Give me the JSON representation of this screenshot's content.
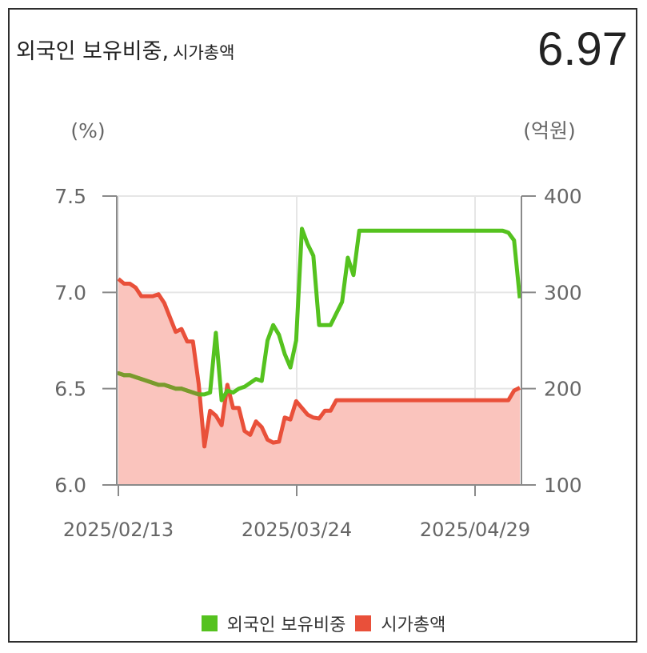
{
  "header": {
    "title_main": "외국인 보유비중,",
    "title_sub": "시가총액",
    "current_value": "6.97"
  },
  "colors": {
    "foreign_line": "#55c21f",
    "foreign_overlap": "#7a9a2c",
    "market_cap_line": "#e9503a",
    "market_cap_fill": "#fac4bd",
    "axis": "#8a8a8a",
    "grid": "#e6e6e6"
  },
  "legend": {
    "foreign_label": "외국인 보유비중",
    "market_cap_label": "시가총액"
  },
  "chart_data": {
    "type": "line",
    "title": "외국인 보유비중, 시가총액",
    "x_tick_labels": [
      "2025/02/13",
      "2025/03/24",
      "2025/04/29"
    ],
    "y_left": {
      "unit_label": "(%)",
      "ticks": [
        "6.0",
        "6.5",
        "7.0",
        "7.5"
      ],
      "range": [
        6.0,
        7.5
      ]
    },
    "y_right": {
      "unit_label": "(억원)",
      "ticks": [
        "100",
        "200",
        "300",
        "400"
      ],
      "range": [
        100,
        400
      ]
    },
    "grid": true,
    "legend_position": "bottom",
    "series": [
      {
        "name": "외국인 보유비중",
        "axis": "left",
        "values": [
          6.58,
          6.57,
          6.57,
          6.56,
          6.55,
          6.54,
          6.53,
          6.52,
          6.52,
          6.51,
          6.5,
          6.5,
          6.49,
          6.48,
          6.47,
          6.47,
          6.48,
          6.79,
          6.44,
          6.49,
          6.48,
          6.5,
          6.51,
          6.53,
          6.55,
          6.54,
          6.75,
          6.83,
          6.78,
          6.68,
          6.61,
          6.75,
          7.33,
          7.25,
          7.19,
          6.83,
          6.83,
          6.83,
          6.89,
          6.95,
          7.18,
          7.09,
          7.32,
          7.32,
          7.32,
          7.32,
          7.32,
          7.32,
          7.32,
          7.32,
          7.32,
          7.32,
          7.32,
          7.32,
          7.32,
          7.32,
          7.32,
          7.32,
          7.32,
          7.32,
          7.32,
          7.32,
          7.32,
          7.32,
          7.32,
          7.32,
          7.32,
          7.32,
          7.31,
          7.27,
          6.97
        ]
      },
      {
        "name": "시가총액",
        "axis": "right",
        "values": [
          314,
          309,
          309,
          305,
          296,
          296,
          296,
          298,
          289,
          274,
          259,
          262,
          249,
          249,
          205,
          140,
          177,
          172,
          162,
          204,
          180,
          180,
          156,
          152,
          166,
          160,
          147,
          144,
          145,
          170,
          168,
          187,
          180,
          173,
          170,
          169,
          177,
          177,
          188,
          188,
          188,
          188,
          188,
          188,
          188,
          188,
          188,
          188,
          188,
          188,
          188,
          188,
          188,
          188,
          188,
          188,
          188,
          188,
          188,
          188,
          188,
          188,
          188,
          188,
          188,
          188,
          188,
          188,
          188,
          198,
          201
        ]
      }
    ]
  }
}
